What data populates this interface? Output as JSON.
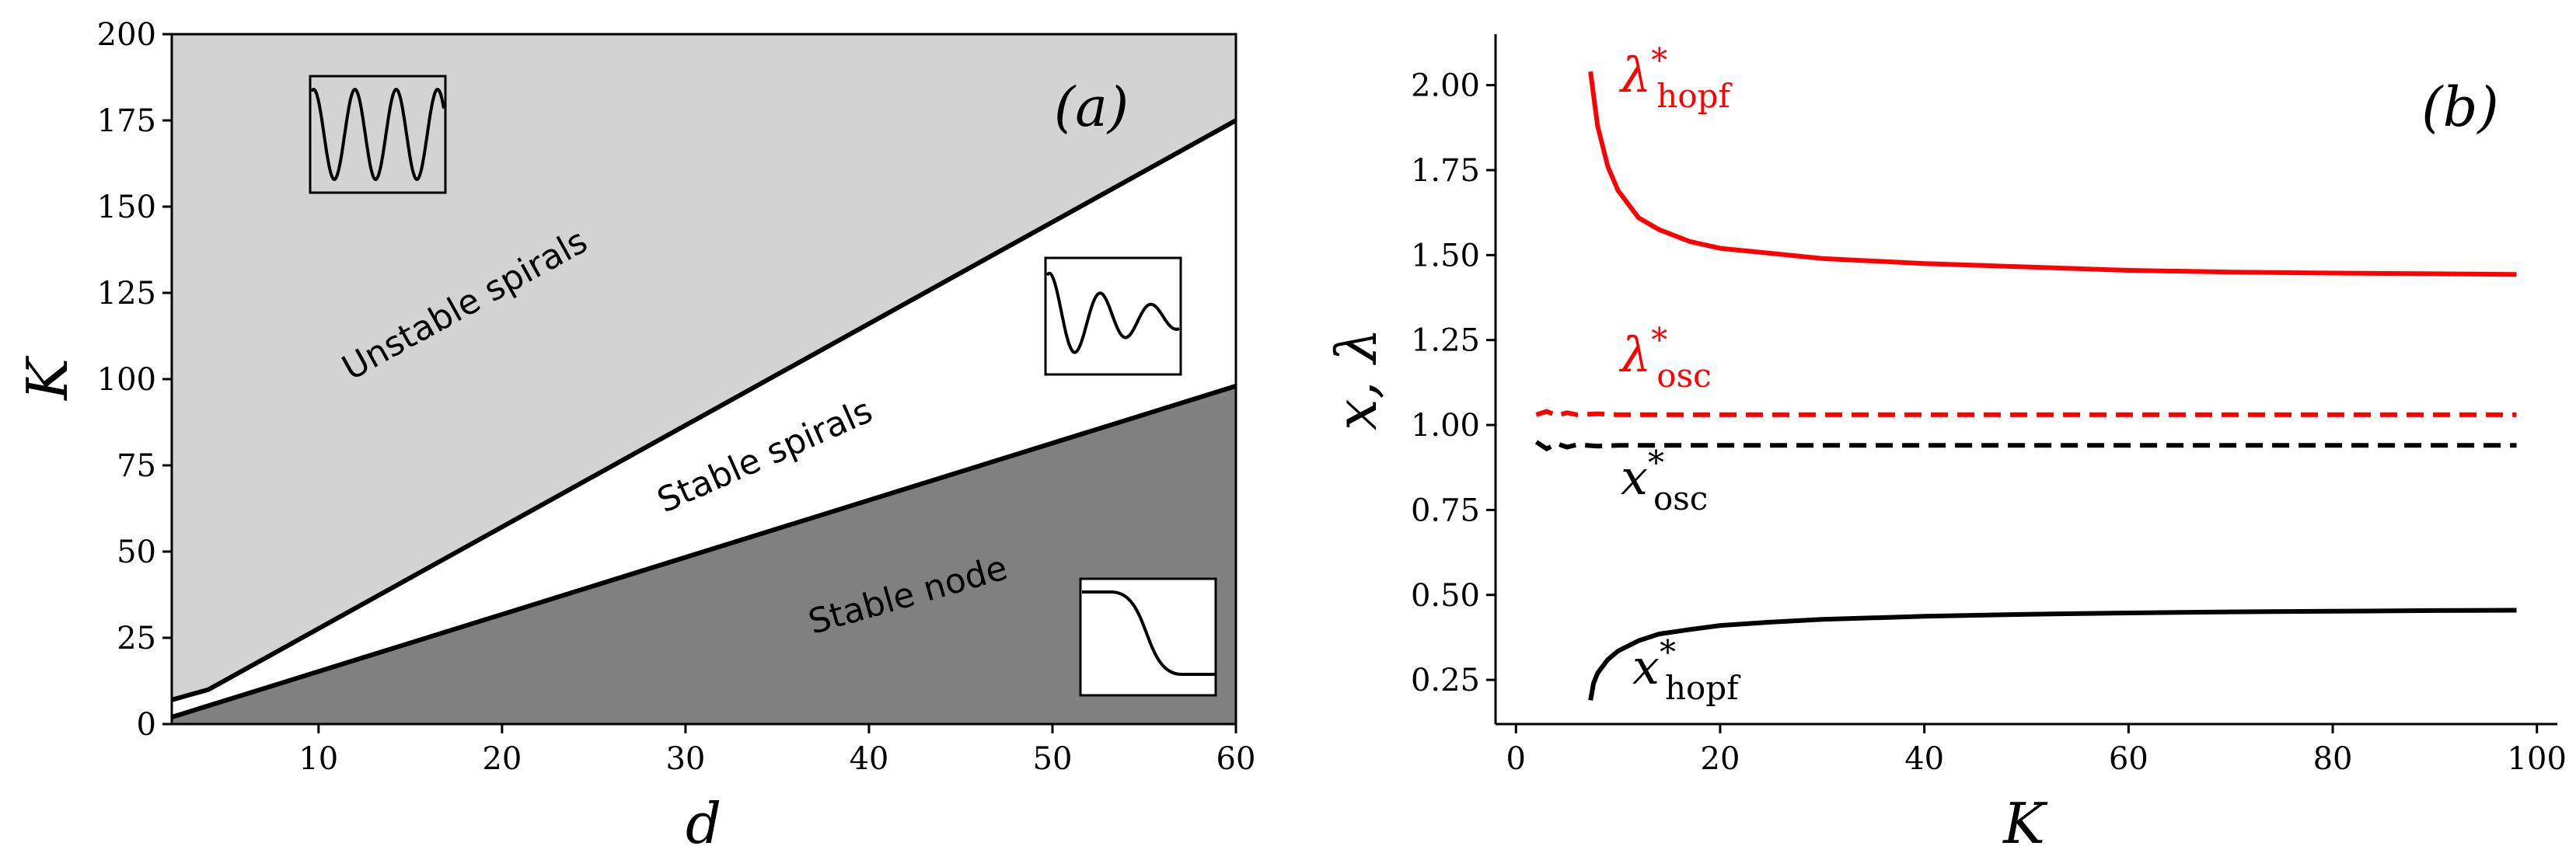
{
  "colors": {
    "unstable_region": "#d3d3d3",
    "stable_spiral_region": "#ffffff",
    "stable_node_region": "#808080",
    "hopf": "#ff0000",
    "black": "#000000"
  },
  "chart_data": [
    {
      "type": "area",
      "panel_label": "(a)",
      "xlabel": "d",
      "ylabel": "K",
      "xlim": [
        2,
        60
      ],
      "ylim": [
        0,
        200
      ],
      "xticks": [
        10,
        20,
        30,
        40,
        50,
        60
      ],
      "yticks": [
        0,
        25,
        50,
        75,
        100,
        125,
        150,
        175,
        200
      ],
      "xtick_labels": [
        "10",
        "20",
        "30",
        "40",
        "50",
        "60"
      ],
      "ytick_labels": [
        "0",
        "25",
        "50",
        "75",
        "100",
        "125",
        "150",
        "175",
        "200"
      ],
      "boundaries": [
        {
          "name": "upper boundary",
          "x": [
            2,
            4,
            60
          ],
          "y": [
            7,
            10,
            175
          ]
        },
        {
          "name": "lower boundary",
          "x": [
            2,
            60
          ],
          "y": [
            2,
            98
          ]
        }
      ],
      "regions": [
        {
          "name": "Unstable spirals",
          "label": "Unstable spirals"
        },
        {
          "name": "Stable spirals",
          "label": "Stable spirals"
        },
        {
          "name": "Stable node",
          "label": "Stable node"
        }
      ],
      "insets": [
        "sustained-oscillation-icon",
        "damped-oscillation-icon",
        "monotone-decay-icon"
      ]
    },
    {
      "type": "line",
      "panel_label": "(b)",
      "xlabel": "K",
      "ylabel": "x, λ",
      "xlim": [
        -2,
        102
      ],
      "ylim": [
        0.12,
        2.15
      ],
      "xticks": [
        0,
        20,
        40,
        60,
        80,
        100
      ],
      "yticks": [
        0.25,
        0.5,
        0.75,
        1.0,
        1.25,
        1.5,
        1.75,
        2.0
      ],
      "xtick_labels": [
        "0",
        "20",
        "40",
        "60",
        "80",
        "100"
      ],
      "ytick_labels": [
        "0.25",
        "0.50",
        "0.75",
        "1.00",
        "1.25",
        "1.50",
        "1.75",
        "2.00"
      ],
      "series": [
        {
          "name": "lambda_hopf",
          "label_main": "λ",
          "label_sup": "*",
          "label_sub": "hopf",
          "style": "solid",
          "color": "#ff0000",
          "x": [
            7.3,
            7.6,
            8,
            9,
            10,
            12,
            14,
            17,
            20,
            25,
            30,
            40,
            50,
            60,
            70,
            80,
            90,
            98
          ],
          "y": [
            2.04,
            1.97,
            1.88,
            1.76,
            1.69,
            1.61,
            1.575,
            1.54,
            1.52,
            1.505,
            1.49,
            1.475,
            1.465,
            1.455,
            1.45,
            1.447,
            1.445,
            1.443
          ]
        },
        {
          "name": "lambda_osc",
          "label_main": "λ",
          "label_sup": "*",
          "label_sub": "osc",
          "style": "dashed",
          "color": "#ff0000",
          "x": [
            2,
            3,
            4,
            5,
            6,
            8,
            10,
            20,
            40,
            60,
            80,
            98
          ],
          "y": [
            1.03,
            1.04,
            1.028,
            1.036,
            1.03,
            1.033,
            1.03,
            1.03,
            1.03,
            1.03,
            1.03,
            1.03
          ]
        },
        {
          "name": "x_osc",
          "label_main": "x",
          "label_sup": "*",
          "label_sub": "osc",
          "style": "dashed",
          "color": "#000000",
          "x": [
            2,
            3,
            4,
            5,
            6,
            8,
            10,
            20,
            40,
            60,
            80,
            98
          ],
          "y": [
            0.95,
            0.93,
            0.945,
            0.935,
            0.942,
            0.938,
            0.94,
            0.94,
            0.94,
            0.94,
            0.94,
            0.94
          ]
        },
        {
          "name": "x_hopf",
          "label_main": "x",
          "label_sup": "*",
          "label_sub": "hopf",
          "style": "solid",
          "color": "#000000",
          "x": [
            7.3,
            7.6,
            8,
            9,
            10,
            12,
            14,
            17,
            20,
            25,
            30,
            40,
            50,
            60,
            70,
            80,
            90,
            98
          ],
          "y": [
            0.19,
            0.24,
            0.27,
            0.31,
            0.335,
            0.365,
            0.385,
            0.398,
            0.41,
            0.42,
            0.428,
            0.437,
            0.443,
            0.447,
            0.45,
            0.452,
            0.454,
            0.455
          ]
        }
      ]
    }
  ]
}
